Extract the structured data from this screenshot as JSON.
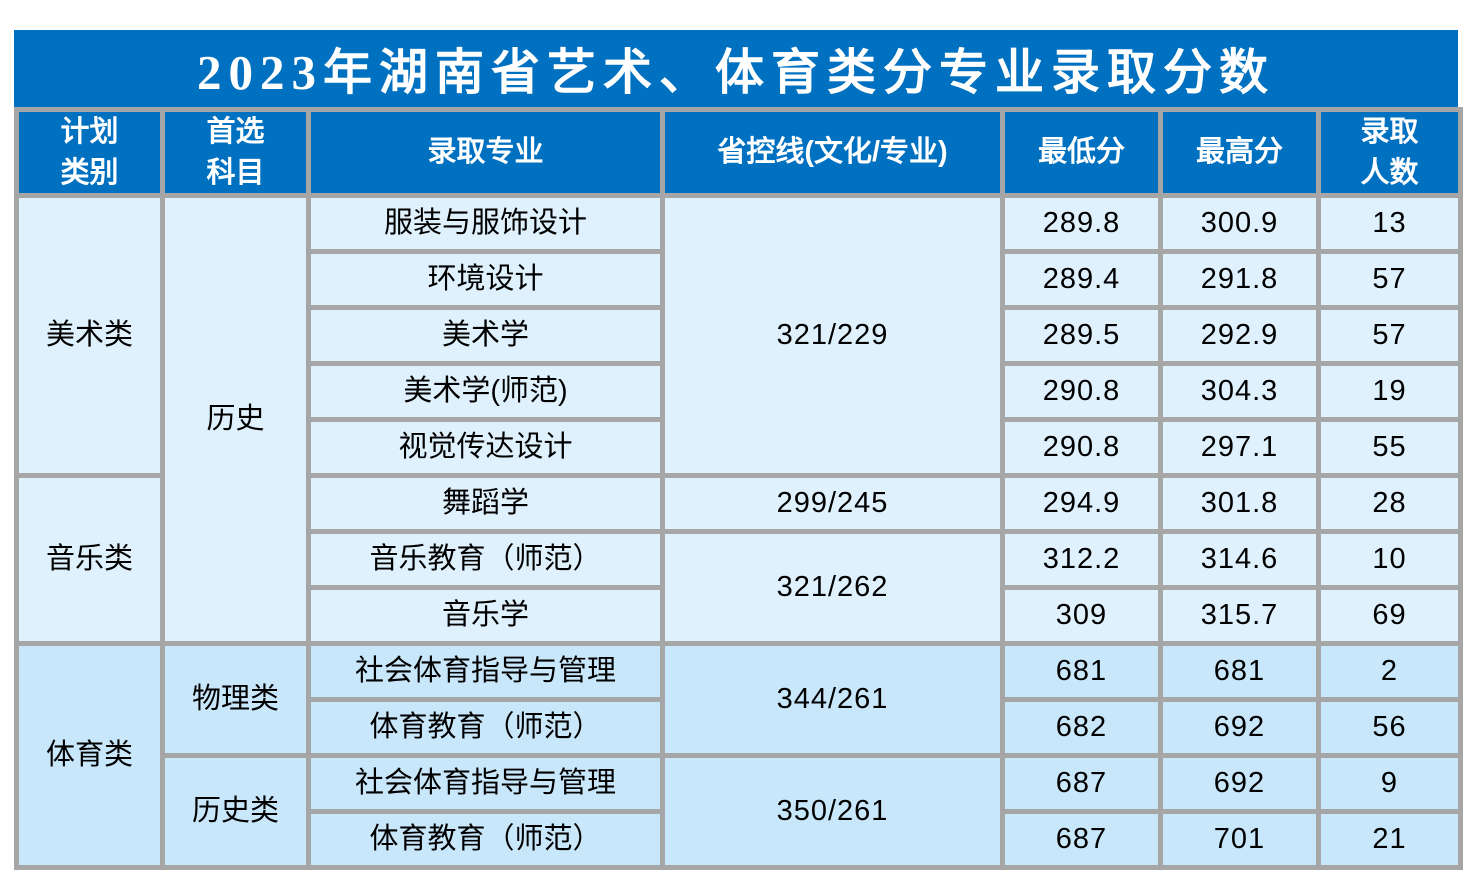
{
  "title": "2023年湖南省艺术、体育类分专业录取分数",
  "colors": {
    "header_blue": "#0070C0",
    "body_light_blue": "#DFF1FD",
    "body_sports_blue": "#C9E7FB",
    "border_gray": "#A6A6A6",
    "title_text": "#FFFFFF",
    "body_text": "#000000"
  },
  "headers": {
    "plan": "计划\n类别",
    "subject": "首选\n科目",
    "major": "录取专业",
    "line": "省控线(文化/专业)",
    "min": "最低分",
    "max": "最高分",
    "count": "录取\n人数"
  },
  "chart_data": {
    "type": "table",
    "title": "2023年湖南省艺术、体育类分专业录取分数",
    "columns": [
      "计划类别",
      "首选科目",
      "录取专业",
      "省控线(文化/专业)",
      "最低分",
      "最高分",
      "录取人数"
    ],
    "rows": [
      [
        "美术类",
        "历史",
        "服装与服饰设计",
        "321/229",
        289.8,
        300.9,
        13
      ],
      [
        "美术类",
        "历史",
        "环境设计",
        "321/229",
        289.4,
        291.8,
        57
      ],
      [
        "美术类",
        "历史",
        "美术学",
        "321/229",
        289.5,
        292.9,
        57
      ],
      [
        "美术类",
        "历史",
        "美术学(师范)",
        "321/229",
        290.8,
        304.3,
        19
      ],
      [
        "美术类",
        "历史",
        "视觉传达设计",
        "321/229",
        290.8,
        297.1,
        55
      ],
      [
        "音乐类",
        "历史",
        "舞蹈学",
        "299/245",
        294.9,
        301.8,
        28
      ],
      [
        "音乐类",
        "历史",
        "音乐教育（师范）",
        "321/262",
        312.2,
        314.6,
        10
      ],
      [
        "音乐类",
        "历史",
        "音乐学",
        "321/262",
        309,
        315.7,
        69
      ],
      [
        "体育类",
        "物理类",
        "社会体育指导与管理",
        "344/261",
        681,
        681,
        2
      ],
      [
        "体育类",
        "物理类",
        "体育教育（师范）",
        "344/261",
        682,
        692,
        56
      ],
      [
        "体育类",
        "历史类",
        "社会体育指导与管理",
        "350/261",
        687,
        692,
        9
      ],
      [
        "体育类",
        "历史类",
        "体育教育（师范）",
        "350/261",
        687,
        701,
        21
      ]
    ]
  },
  "rows": [
    {
      "cat": "美术类",
      "subj": "历史",
      "major": "服装与服饰设计",
      "line": "321/229",
      "min": "289.8",
      "max": "300.9",
      "count": "13"
    },
    {
      "major": "环境设计",
      "min": "289.4",
      "max": "291.8",
      "count": "57"
    },
    {
      "major": "美术学",
      "min": "289.5",
      "max": "292.9",
      "count": "57"
    },
    {
      "major": "美术学(师范)",
      "min": "290.8",
      "max": "304.3",
      "count": "19"
    },
    {
      "major": "视觉传达设计",
      "min": "290.8",
      "max": "297.1",
      "count": "55"
    },
    {
      "cat": "音乐类",
      "major": "舞蹈学",
      "line": "299/245",
      "min": "294.9",
      "max": "301.8",
      "count": "28"
    },
    {
      "major": "音乐教育（师范）",
      "line": "321/262",
      "min": "312.2",
      "max": "314.6",
      "count": "10"
    },
    {
      "major": "音乐学",
      "min": "309",
      "max": "315.7",
      "count": "69"
    },
    {
      "cat": "体育类",
      "subj": "物理类",
      "major": "社会体育指导与管理",
      "line": "344/261",
      "min": "681",
      "max": "681",
      "count": "2"
    },
    {
      "major": "体育教育（师范）",
      "min": "682",
      "max": "692",
      "count": "56"
    },
    {
      "subj": "历史类",
      "major": "社会体育指导与管理",
      "line": "350/261",
      "min": "687",
      "max": "692",
      "count": "9"
    },
    {
      "major": "体育教育（师范）",
      "min": "687",
      "max": "701",
      "count": "21"
    }
  ]
}
